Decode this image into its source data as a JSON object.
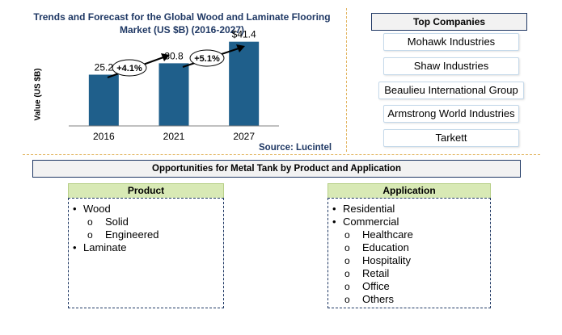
{
  "chart_data": {
    "type": "bar",
    "title": "Trends and Forecast for the Global Wood and Laminate Flooring Market (US $B) (2016-2027)",
    "ylabel": "Value (US $B)",
    "xlabel": "",
    "categories": [
      "2016",
      "2021",
      "2027"
    ],
    "values": [
      25.2,
      30.8,
      41.4
    ],
    "value_labels": [
      "25.2",
      "30.8",
      "$41.4"
    ],
    "ylim": [
      0,
      50
    ],
    "bar_color": "#1f5f8b",
    "grid": false,
    "annotations": [
      "+4.1%",
      "+5.1%"
    ],
    "source": "Source: Lucintel"
  },
  "top_companies": {
    "header": "Top Companies",
    "items": [
      "Mohawk Industries",
      "Shaw Industries",
      "Beaulieu International Group",
      "Armstrong World Industries",
      "Tarkett"
    ]
  },
  "opportunities": {
    "title": "Opportunities for Metal Tank by Product and Application",
    "product": {
      "header": "Product",
      "items": [
        {
          "label": "Wood",
          "level": 1
        },
        {
          "label": "Solid",
          "level": 2
        },
        {
          "label": "Engineered",
          "level": 2
        },
        {
          "label": "Laminate",
          "level": 1
        }
      ]
    },
    "application": {
      "header": "Application",
      "items": [
        {
          "label": "Residential",
          "level": 1
        },
        {
          "label": "Commercial",
          "level": 1
        },
        {
          "label": "Healthcare",
          "level": 2
        },
        {
          "label": "Education",
          "level": 2
        },
        {
          "label": "Hospitality",
          "level": 2
        },
        {
          "label": "Retail",
          "level": 2
        },
        {
          "label": "Office",
          "level": 2
        },
        {
          "label": "Others",
          "level": 2
        }
      ]
    }
  },
  "colors": {
    "accent_navy": "#1f3864",
    "column_header_green": "#d8e9b5",
    "separator_gold": "#e3b765"
  }
}
